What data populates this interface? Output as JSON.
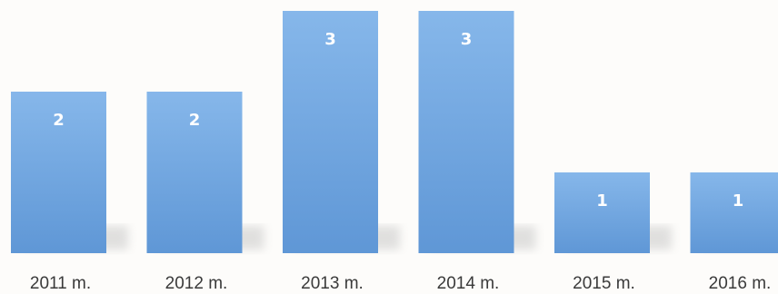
{
  "chart_data": {
    "type": "bar",
    "categories": [
      "2011 m.",
      "2012 m.",
      "2013 m.",
      "2014 m.",
      "2015 m.",
      "2016 m."
    ],
    "values": [
      2,
      2,
      3,
      3,
      1,
      1
    ],
    "data_labels": [
      "2",
      "2",
      "3",
      "3",
      "1",
      "1"
    ],
    "title": "",
    "xlabel": "",
    "ylabel": "",
    "ylim": [
      0,
      3
    ],
    "grid": false,
    "legend": "none",
    "colors": {
      "bar_top": "#86b7ea",
      "bar_bottom": "#5f97d6",
      "label_text": "#ffffff",
      "tick_text": "#3a3a3a",
      "background": "#fdfcfa"
    }
  }
}
